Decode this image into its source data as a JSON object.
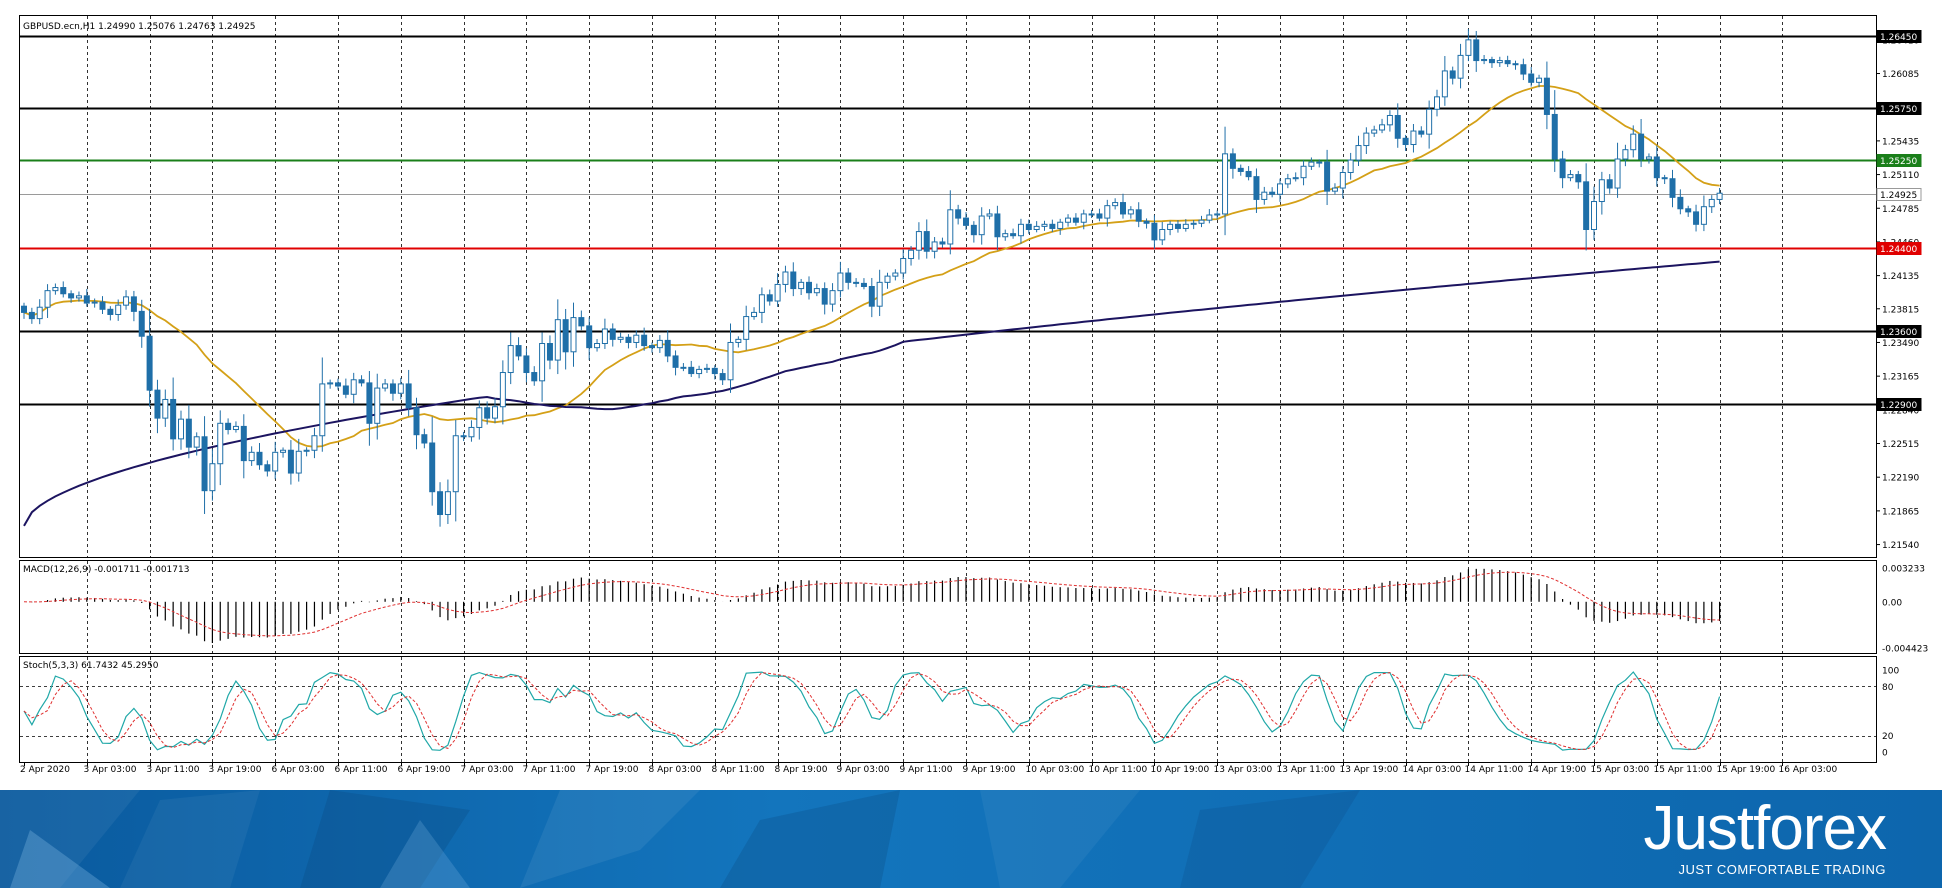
{
  "chart_data": [
    {
      "type": "candlestick",
      "title": "GBPUSD.ecn,H1  1.24990 1.25076 1.24763 1.24925",
      "symbol": "GBPUSD.ecn",
      "timeframe": "H1",
      "ohlc": {
        "open": 1.2499,
        "high": 1.25076,
        "low": 1.24763,
        "close": 1.24925
      },
      "ylim": [
        1.2142,
        1.2664
      ],
      "yticks": [
        "1.26410",
        "1.26085",
        "1.25760",
        "1.25435",
        "1.25110",
        "1.24785",
        "1.24460",
        "1.24135",
        "1.23815",
        "1.23490",
        "1.23165",
        "1.22840",
        "1.22515",
        "1.22190",
        "1.21865",
        "1.21540"
      ],
      "xticks": [
        "2 Apr 2020",
        "3 Apr 03:00",
        "3 Apr 11:00",
        "3 Apr 19:00",
        "6 Apr 03:00",
        "6 Apr 11:00",
        "6 Apr 19:00",
        "7 Apr 03:00",
        "7 Apr 11:00",
        "7 Apr 19:00",
        "8 Apr 03:00",
        "8 Apr 11:00",
        "8 Apr 19:00",
        "9 Apr 03:00",
        "9 Apr 11:00",
        "9 Apr 19:00",
        "10 Apr 03:00",
        "10 Apr 11:00",
        "10 Apr 19:00",
        "13 Apr 03:00",
        "13 Apr 11:00",
        "13 Apr 19:00",
        "14 Apr 03:00",
        "14 Apr 11:00",
        "14 Apr 19:00",
        "15 Apr 03:00",
        "15 Apr 11:00",
        "15 Apr 19:00",
        "16 Apr 03:00"
      ],
      "levels": [
        {
          "value": 1.2645,
          "label": "1.26450",
          "color": "#000000"
        },
        {
          "value": 1.2575,
          "label": "1.25750",
          "color": "#000000"
        },
        {
          "value": 1.2525,
          "label": "1.25250",
          "color": "#1a7f1a"
        },
        {
          "value": 1.2492,
          "label": "1.24925",
          "color": "#9a9a9a",
          "current": true
        },
        {
          "value": 1.244,
          "label": "1.24400",
          "color": "#e00000"
        },
        {
          "value": 1.236,
          "label": "1.23600",
          "color": "#000000"
        },
        {
          "value": 1.229,
          "label": "1.22900",
          "color": "#000000"
        }
      ],
      "moving_average_fast_color": "#d4a017",
      "moving_average_slow_color": "#1c1460",
      "candle_colors": {
        "bull": "#ffffff",
        "bear": "#1f6fa8",
        "outline": "#1f6fa8"
      },
      "closes": [
        1.2378,
        1.2372,
        1.2383,
        1.2399,
        1.2402,
        1.2396,
        1.2392,
        1.2394,
        1.2387,
        1.2388,
        1.2381,
        1.2376,
        1.2385,
        1.2393,
        1.2379,
        1.2355,
        1.2303,
        1.2276,
        1.2294,
        1.2256,
        1.2275,
        1.2248,
        1.2258,
        1.2206,
        1.2232,
        1.2271,
        1.2265,
        1.2268,
        1.2235,
        1.2243,
        1.2231,
        1.2225,
        1.2243,
        1.2245,
        1.2223,
        1.2244,
        1.2245,
        1.2259,
        1.2309,
        1.231,
        1.2307,
        1.2299,
        1.2313,
        1.231,
        1.2271,
        1.2305,
        1.2309,
        1.23,
        1.2309,
        1.2286,
        1.226,
        1.2252,
        1.2205,
        1.2183,
        1.2205,
        1.2259,
        1.2258,
        1.2267,
        1.2286,
        1.2276,
        1.2287,
        1.232,
        1.2346,
        1.2336,
        1.232,
        1.2312,
        1.2348,
        1.2332,
        1.2371,
        1.234,
        1.2373,
        1.2365,
        1.2344,
        1.2348,
        1.2362,
        1.2352,
        1.2354,
        1.2349,
        1.2356,
        1.2346,
        1.2344,
        1.2351,
        1.2336,
        1.2325,
        1.2325,
        1.2319,
        1.2323,
        1.2324,
        1.2319,
        1.2313,
        1.2349,
        1.2352,
        1.2374,
        1.2378,
        1.2395,
        1.2389,
        1.2405,
        1.2417,
        1.2401,
        1.2407,
        1.2397,
        1.2401,
        1.2386,
        1.2399,
        1.2416,
        1.2407,
        1.2406,
        1.2403,
        1.2384,
        1.2407,
        1.2413,
        1.2416,
        1.243,
        1.2438,
        1.2456,
        1.2437,
        1.2446,
        1.2444,
        1.2477,
        1.2469,
        1.2462,
        1.2453,
        1.2471,
        1.2473,
        1.2451,
        1.2454,
        1.2452,
        1.2463,
        1.2458,
        1.2461,
        1.2463,
        1.2459,
        1.2465,
        1.2469,
        1.2465,
        1.2473,
        1.2473,
        1.2469,
        1.2481,
        1.2484,
        1.2473,
        1.2477,
        1.2466,
        1.2464,
        1.2448,
        1.2458,
        1.2463,
        1.2459,
        1.2463,
        1.2464,
        1.2467,
        1.2472,
        1.2473,
        1.2531,
        1.2517,
        1.2514,
        1.2509,
        1.2487,
        1.2494,
        1.2492,
        1.2502,
        1.2507,
        1.2508,
        1.2519,
        1.2523,
        1.2523,
        1.2495,
        1.2498,
        1.2513,
        1.2525,
        1.2539,
        1.2551,
        1.2554,
        1.2559,
        1.2568,
        1.2546,
        1.254,
        1.2553,
        1.255,
        1.2574,
        1.2586,
        1.2611,
        1.2604,
        1.2626,
        1.2641,
        1.2621,
        1.2622,
        1.2619,
        1.2621,
        1.2618,
        1.2617,
        1.2608,
        1.26,
        1.2604,
        1.2569,
        1.2526,
        1.2508,
        1.2511,
        1.2504,
        1.2458,
        1.2485,
        1.2506,
        1.2498,
        1.2526,
        1.2535,
        1.255,
        1.2526,
        1.2528,
        1.2508,
        1.2507,
        1.2489,
        1.2478,
        1.2475,
        1.2463,
        1.248,
        1.2487,
        1.2493
      ],
      "closes_start_x_label": "2 Apr 2020",
      "closes_step": "1 hour"
    },
    {
      "type": "bar",
      "title": "MACD(12,26,9) -0.001711 -0.001713",
      "ylim": [
        -0.004423,
        0.003233
      ],
      "yticks": [
        "0.003233",
        "0.00",
        "-0.004423"
      ],
      "histogram_color": "#000000",
      "signal_color": "#e03030"
    },
    {
      "type": "line",
      "title": "Stoch(5,3,3) 61.7432 45.2950",
      "ylim": [
        0,
        100
      ],
      "yticks": [
        "100",
        "80",
        "20",
        "0"
      ],
      "main_color": "#20a8a8",
      "signal_color": "#e03030"
    }
  ],
  "brand": {
    "name": "Justforex",
    "tagline": "JUST COMFORTABLE TRADING"
  }
}
